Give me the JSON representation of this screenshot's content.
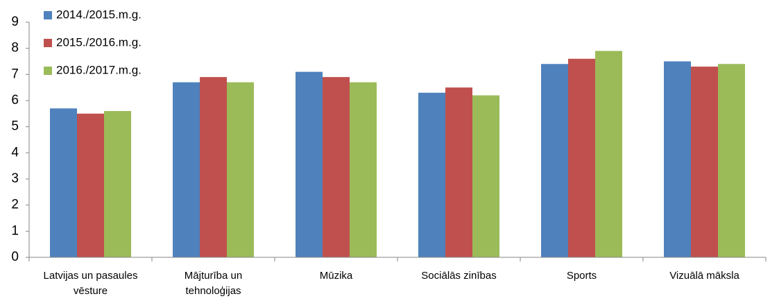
{
  "chart_data": {
    "type": "bar",
    "categories": [
      [
        "Latvijas un pasaules",
        "vēsture"
      ],
      [
        "Mājturība un",
        "tehnoloģijas"
      ],
      [
        "Mūzika"
      ],
      [
        "Sociālās zinības"
      ],
      [
        "Sports"
      ],
      [
        "Vizuālā māksla"
      ]
    ],
    "series": [
      {
        "name": "2014./2015.m.g.",
        "color": "#4f81bd",
        "values": [
          5.7,
          6.7,
          7.1,
          6.3,
          7.4,
          7.5
        ]
      },
      {
        "name": "2015./2016.m.g.",
        "color": "#c0504d",
        "values": [
          5.5,
          6.9,
          6.9,
          6.5,
          7.6,
          7.3
        ]
      },
      {
        "name": "2016./2017.m.g.",
        "color": "#9bbb59",
        "values": [
          5.6,
          6.7,
          6.7,
          6.2,
          7.9,
          7.4
        ]
      }
    ],
    "ylim": [
      0,
      9
    ],
    "yticks": [
      0,
      1,
      2,
      3,
      4,
      5,
      6,
      7,
      8,
      9
    ],
    "grid": false,
    "legend": "top-left"
  }
}
